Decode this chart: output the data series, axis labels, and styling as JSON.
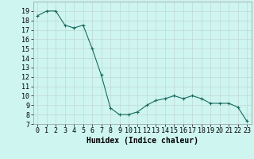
{
  "x": [
    0,
    1,
    2,
    3,
    4,
    5,
    6,
    7,
    8,
    9,
    10,
    11,
    12,
    13,
    14,
    15,
    16,
    17,
    18,
    19,
    20,
    21,
    22,
    23
  ],
  "y": [
    18.5,
    19.0,
    19.0,
    17.5,
    17.2,
    17.5,
    15.0,
    12.2,
    8.7,
    8.0,
    8.0,
    8.3,
    9.0,
    9.5,
    9.7,
    10.0,
    9.7,
    10.0,
    9.7,
    9.2,
    9.2,
    9.2,
    8.8,
    7.3
  ],
  "xlabel": "Humidex (Indice chaleur)",
  "bg_color": "#cef5f0",
  "grid_color": "#c0d8d4",
  "line_color": "#1a6b60",
  "marker_color": "#1a6b60",
  "xlim": [
    -0.5,
    23.5
  ],
  "ylim": [
    7,
    20
  ],
  "yticks": [
    7,
    8,
    9,
    10,
    11,
    12,
    13,
    14,
    15,
    16,
    17,
    18,
    19
  ],
  "xticks": [
    0,
    1,
    2,
    3,
    4,
    5,
    6,
    7,
    8,
    9,
    10,
    11,
    12,
    13,
    14,
    15,
    16,
    17,
    18,
    19,
    20,
    21,
    22,
    23
  ],
  "xlabel_fontsize": 7,
  "tick_fontsize": 6
}
